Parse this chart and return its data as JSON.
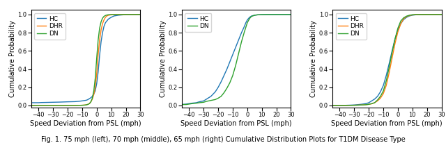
{
  "title": "Fig. 1. 75 mph (left), 70 mph (middle), 65 mph (right) Cumulative Distribution Plots for T1DM Disease Type",
  "xlabel": "Speed Deviation from PSL (mph)",
  "ylabel": "Cumulative Probability",
  "xlim": [
    -45,
    30
  ],
  "ylim": [
    -0.02,
    1.05
  ],
  "xticks": [
    -40,
    -30,
    -20,
    -10,
    0,
    10,
    20,
    30
  ],
  "yticks": [
    0.0,
    0.2,
    0.4,
    0.6,
    0.8,
    1.0
  ],
  "colors": {
    "HC": "#1f77b4",
    "DHR": "#ff7f0e",
    "DN": "#2ca02c"
  },
  "panels": [
    {
      "name": "75mph",
      "groups": [
        "HC",
        "DHR",
        "DN"
      ],
      "HC": {
        "x": [
          -45,
          -42,
          -40,
          -38,
          -35,
          -30,
          -25,
          -20,
          -15,
          -12,
          -10,
          -8,
          -7,
          -6,
          -5,
          -4,
          -3,
          -2,
          -1,
          0,
          1,
          2,
          3,
          4,
          5,
          6,
          7,
          8,
          10,
          12,
          15,
          18,
          20,
          25,
          30
        ],
        "y": [
          0.03,
          0.03,
          0.03,
          0.032,
          0.033,
          0.035,
          0.037,
          0.04,
          0.042,
          0.046,
          0.05,
          0.055,
          0.058,
          0.065,
          0.075,
          0.085,
          0.1,
          0.125,
          0.16,
          0.24,
          0.37,
          0.55,
          0.7,
          0.8,
          0.87,
          0.91,
          0.93,
          0.95,
          0.97,
          0.985,
          0.993,
          0.997,
          1.0,
          1.0,
          1.0
        ]
      },
      "DHR": {
        "x": [
          -45,
          -40,
          -35,
          -30,
          -25,
          -20,
          -15,
          -12,
          -10,
          -8,
          -7,
          -6,
          -5,
          -4,
          -3,
          -2,
          -1,
          0,
          1,
          2,
          3,
          4,
          5,
          6,
          7,
          8,
          10,
          12,
          15,
          20,
          25,
          30
        ],
        "y": [
          0.0,
          0.0,
          0.0,
          0.0,
          0.0,
          0.0,
          0.0,
          0.001,
          0.002,
          0.005,
          0.008,
          0.012,
          0.02,
          0.04,
          0.07,
          0.12,
          0.2,
          0.35,
          0.56,
          0.72,
          0.83,
          0.9,
          0.94,
          0.97,
          0.985,
          0.992,
          0.998,
          1.0,
          1.0,
          1.0,
          1.0,
          1.0
        ]
      },
      "DN": {
        "x": [
          -45,
          -40,
          -35,
          -30,
          -25,
          -20,
          -15,
          -12,
          -10,
          -8,
          -7,
          -6,
          -5,
          -4,
          -3,
          -2,
          -1,
          0,
          1,
          2,
          3,
          4,
          5,
          6,
          7,
          8,
          10,
          12,
          15,
          20,
          25,
          30
        ],
        "y": [
          0.0,
          0.0,
          0.0,
          0.0,
          0.0,
          0.0,
          0.0,
          0.001,
          0.002,
          0.004,
          0.007,
          0.012,
          0.02,
          0.04,
          0.08,
          0.16,
          0.3,
          0.52,
          0.72,
          0.85,
          0.92,
          0.96,
          0.98,
          0.99,
          0.995,
          0.998,
          1.0,
          1.0,
          1.0,
          1.0,
          1.0,
          1.0
        ]
      }
    },
    {
      "name": "70mph",
      "groups": [
        "HC",
        "DN"
      ],
      "HC": {
        "x": [
          -45,
          -42,
          -40,
          -38,
          -35,
          -33,
          -30,
          -28,
          -25,
          -22,
          -20,
          -18,
          -16,
          -14,
          -12,
          -10,
          -8,
          -6,
          -4,
          -2,
          -1,
          0,
          1,
          2,
          3,
          5,
          7,
          10,
          15,
          20,
          25,
          30
        ],
        "y": [
          0.01,
          0.015,
          0.02,
          0.025,
          0.03,
          0.04,
          0.05,
          0.07,
          0.1,
          0.15,
          0.2,
          0.26,
          0.33,
          0.4,
          0.48,
          0.56,
          0.64,
          0.72,
          0.8,
          0.87,
          0.91,
          0.94,
          0.96,
          0.975,
          0.985,
          0.993,
          0.997,
          0.999,
          1.0,
          1.0,
          1.0,
          1.0
        ]
      },
      "DN": {
        "x": [
          -45,
          -42,
          -40,
          -38,
          -35,
          -33,
          -30,
          -28,
          -25,
          -22,
          -20,
          -18,
          -16,
          -14,
          -12,
          -10,
          -8,
          -6,
          -4,
          -2,
          -1,
          0,
          1,
          2,
          3,
          5,
          7,
          10,
          15,
          20,
          25,
          30
        ],
        "y": [
          0.01,
          0.01,
          0.015,
          0.02,
          0.025,
          0.03,
          0.035,
          0.045,
          0.055,
          0.065,
          0.08,
          0.1,
          0.14,
          0.19,
          0.25,
          0.33,
          0.44,
          0.57,
          0.7,
          0.81,
          0.86,
          0.91,
          0.94,
          0.965,
          0.98,
          0.992,
          0.997,
          0.999,
          1.0,
          1.0,
          1.0,
          1.0
        ]
      }
    },
    {
      "name": "65mph",
      "groups": [
        "HC",
        "DHR",
        "DN"
      ],
      "HC": {
        "x": [
          -45,
          -42,
          -40,
          -38,
          -35,
          -33,
          -30,
          -28,
          -25,
          -22,
          -20,
          -18,
          -16,
          -14,
          -12,
          -10,
          -8,
          -6,
          -4,
          -2,
          0,
          2,
          4,
          6,
          8,
          10,
          12,
          15,
          20,
          25,
          30
        ],
        "y": [
          0.0,
          0.0,
          0.0,
          0.0,
          0.002,
          0.003,
          0.005,
          0.008,
          0.013,
          0.02,
          0.03,
          0.05,
          0.07,
          0.1,
          0.15,
          0.22,
          0.33,
          0.46,
          0.6,
          0.73,
          0.83,
          0.9,
          0.945,
          0.97,
          0.985,
          0.993,
          0.997,
          0.999,
          1.0,
          1.0,
          1.0
        ]
      },
      "DHR": {
        "x": [
          -45,
          -42,
          -40,
          -38,
          -35,
          -33,
          -30,
          -28,
          -25,
          -22,
          -20,
          -18,
          -16,
          -14,
          -12,
          -10,
          -8,
          -6,
          -4,
          -2,
          0,
          2,
          4,
          6,
          8,
          10,
          12,
          15,
          20,
          25,
          30
        ],
        "y": [
          0.0,
          0.0,
          0.0,
          0.0,
          0.0,
          0.001,
          0.002,
          0.003,
          0.005,
          0.008,
          0.012,
          0.018,
          0.03,
          0.05,
          0.08,
          0.13,
          0.22,
          0.36,
          0.52,
          0.68,
          0.81,
          0.9,
          0.955,
          0.978,
          0.99,
          0.996,
          0.999,
          1.0,
          1.0,
          1.0,
          1.0
        ]
      },
      "DN": {
        "x": [
          -45,
          -42,
          -40,
          -38,
          -35,
          -33,
          -30,
          -28,
          -25,
          -22,
          -20,
          -18,
          -16,
          -14,
          -12,
          -10,
          -8,
          -6,
          -4,
          -2,
          0,
          2,
          4,
          6,
          8,
          10,
          12,
          15,
          20,
          25,
          30
        ],
        "y": [
          0.0,
          0.0,
          0.0,
          0.0,
          0.0,
          0.001,
          0.002,
          0.003,
          0.005,
          0.008,
          0.012,
          0.02,
          0.03,
          0.06,
          0.1,
          0.16,
          0.27,
          0.42,
          0.58,
          0.73,
          0.85,
          0.93,
          0.965,
          0.983,
          0.993,
          0.998,
          1.0,
          1.0,
          1.0,
          1.0,
          1.0
        ]
      }
    }
  ],
  "figsize": [
    6.4,
    2.06
  ],
  "dpi": 100,
  "title_fontsize": 7,
  "axis_label_fontsize": 7,
  "tick_fontsize": 6,
  "legend_fontsize": 6.5,
  "line_width": 1.0
}
